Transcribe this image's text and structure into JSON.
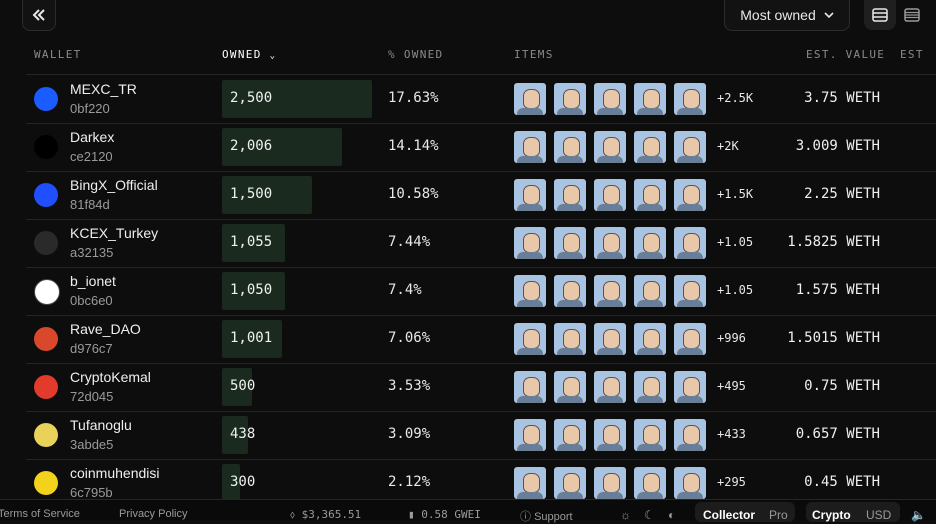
{
  "toolbar": {
    "collapse_icon": "double-chevron-left-icon",
    "sort_label": "Most owned",
    "view_modes": [
      "table-view-icon",
      "list-view-icon"
    ]
  },
  "columns": {
    "wallet": "WALLET",
    "owned": "OWNED",
    "pct_owned": "% OWNED",
    "items": "ITEMS",
    "est_value": "EST. VALUE",
    "est": "EST"
  },
  "rows": [
    {
      "name": "MEXC_TR",
      "addr": "0bf220",
      "owned": "2,500",
      "owned_num": 2500,
      "pct": "17.63%",
      "more": "+2.5K",
      "value": "3.75 WETH",
      "avatar_color": "#1a5cff"
    },
    {
      "name": "Darkex",
      "addr": "ce2120",
      "owned": "2,006",
      "owned_num": 2006,
      "pct": "14.14%",
      "more": "+2K",
      "value": "3.009 WETH",
      "avatar_color": "#000000"
    },
    {
      "name": "BingX_Official",
      "addr": "81f84d",
      "owned": "1,500",
      "owned_num": 1500,
      "pct": "10.58%",
      "more": "+1.5K",
      "value": "2.25 WETH",
      "avatar_color": "#1f4fff"
    },
    {
      "name": "KCEX_Turkey",
      "addr": "a32135",
      "owned": "1,055",
      "owned_num": 1055,
      "pct": "7.44%",
      "more": "+1.05",
      "value": "1.5825 WETH",
      "avatar_color": "#2a2a2a"
    },
    {
      "name": "b_ionet",
      "addr": "0bc6e0",
      "owned": "1,050",
      "owned_num": 1050,
      "pct": "7.4%",
      "more": "+1.05",
      "value": "1.575 WETH",
      "avatar_color": "#ffffff"
    },
    {
      "name": "Rave_DAO",
      "addr": "d976c7",
      "owned": "1,001",
      "owned_num": 1001,
      "pct": "7.06%",
      "more": "+996",
      "value": "1.5015 WETH",
      "avatar_color": "#d9482b"
    },
    {
      "name": "CryptoKemal",
      "addr": "72d045",
      "owned": "500",
      "owned_num": 500,
      "pct": "3.53%",
      "more": "+495",
      "value": "0.75 WETH",
      "avatar_color": "#e23b2b"
    },
    {
      "name": "Tufanoglu",
      "addr": "3abde5",
      "owned": "438",
      "owned_num": 438,
      "pct": "3.09%",
      "more": "+433",
      "value": "0.657 WETH",
      "avatar_color": "#e8d25a"
    },
    {
      "name": "coinmuhendisi",
      "addr": "6c795b",
      "owned": "300",
      "owned_num": 300,
      "pct": "2.12%",
      "more": "+295",
      "value": "0.45 WETH",
      "avatar_color": "#f2d21b"
    }
  ],
  "footer": {
    "terms": "Terms of Service",
    "privacy": "Privacy Policy",
    "eth_price": "$3,365.51",
    "gas": "0.58 GWEI",
    "support": "Support",
    "mode_collector": "Collector",
    "mode_pro": "Pro",
    "currency_crypto": "Crypto",
    "currency_usd": "USD"
  }
}
